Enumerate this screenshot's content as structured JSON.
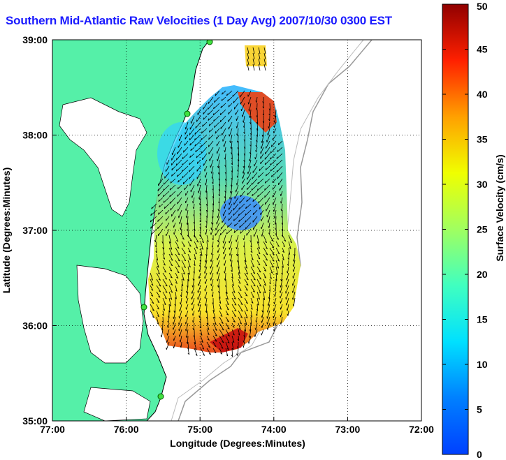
{
  "title": "Southern Mid-Atlantic Raw Velocities (1 Day Avg) 2007/10/30 0300 EST",
  "map": {
    "x_axis": {
      "label": "Longitude (Degrees:Minutes)",
      "ticks": [
        "77:00",
        "76:00",
        "75:00",
        "74:00",
        "73:00",
        "72:00"
      ]
    },
    "y_axis": {
      "label": "Latitude (Degrees:Minutes)",
      "ticks": [
        "39:00",
        "38:00",
        "37:00",
        "36:00",
        "35:00"
      ]
    },
    "grid": "dotted",
    "land_color": "#55f0a8",
    "ocean_color": "#ffffff",
    "vector_color": "#000000"
  },
  "colorbar": {
    "label": "Surface Velocity (cm/s)",
    "ticks": [
      "0",
      "5",
      "10",
      "15",
      "20",
      "25",
      "30",
      "35",
      "40",
      "45",
      "50"
    ],
    "min": 0,
    "max": 50,
    "colormap": "jet"
  }
}
